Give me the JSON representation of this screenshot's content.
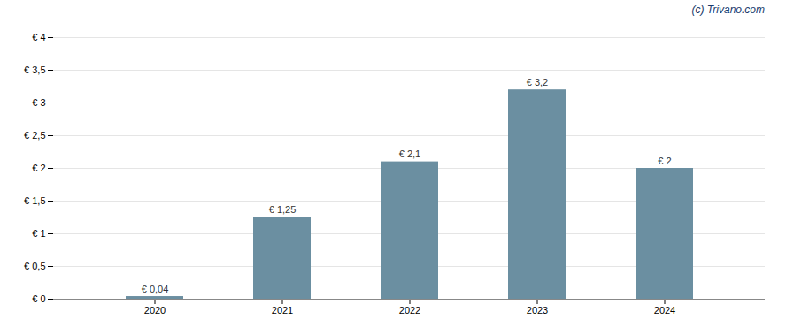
{
  "chart_data": {
    "type": "bar",
    "categories": [
      "2020",
      "2021",
      "2022",
      "2023",
      "2024"
    ],
    "values": [
      0.04,
      1.25,
      2.1,
      3.2,
      2.0
    ],
    "value_labels": [
      "€ 0,04",
      "€ 1,25",
      "€ 2,1",
      "€ 3,2",
      "€ 2"
    ],
    "data_labels": true,
    "color": "#6b8fa1",
    "ylim": [
      0,
      4.0
    ],
    "yticks": [
      {
        "value": 0,
        "label": "€ 0"
      },
      {
        "value": 0.5,
        "label": "€ 0,5"
      },
      {
        "value": 1.0,
        "label": "€ 1"
      },
      {
        "value": 1.5,
        "label": "€ 1,5"
      },
      {
        "value": 2.0,
        "label": "€ 2"
      },
      {
        "value": 2.5,
        "label": "€ 2,5"
      },
      {
        "value": 3.0,
        "label": "€ 3"
      },
      {
        "value": 3.5,
        "label": "€ 3,5"
      },
      {
        "value": 4.0,
        "label": "€ 4"
      }
    ],
    "grid": true,
    "annotations": [
      "(c) Trivano.com"
    ]
  }
}
